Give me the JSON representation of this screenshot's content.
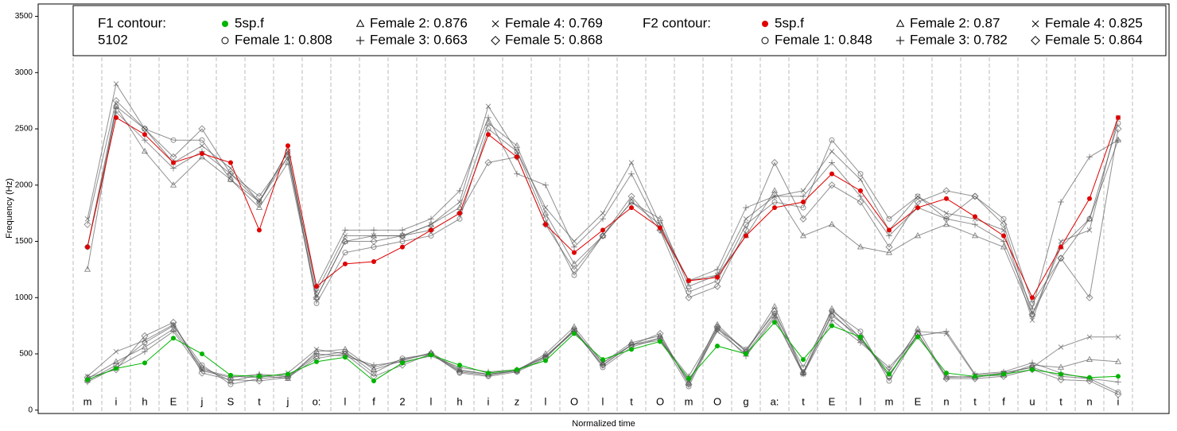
{
  "chart_data": {
    "type": "line",
    "xlabel": "Normalized time",
    "ylabel": "Frequency (Hz)",
    "ylim": [
      -30,
      3610
    ],
    "yticks": [
      0,
      500,
      1000,
      1500,
      2000,
      2500,
      3000,
      3500
    ],
    "xgrid": true,
    "categories": [
      "m",
      "i",
      "h",
      "E",
      "j",
      "S",
      "t",
      "j",
      "o:",
      "l",
      "f",
      "2",
      "l",
      "h",
      "i",
      "z",
      "l",
      "O",
      "l",
      "t",
      "O",
      "m",
      "O",
      "g",
      "a:",
      "t",
      "E",
      "l",
      "m",
      "E",
      "n",
      "t",
      "f",
      "u",
      "t",
      "n",
      "i"
    ],
    "legend_groups": [
      {
        "title": "F1 contour:",
        "subtitle": "5102",
        "series": [
          {
            "name": "5sp.f",
            "color": "#00b400",
            "marker": "dot",
            "values": [
              270,
              370,
              420,
              640,
              500,
              310,
              300,
              320,
              430,
              470,
              260,
              420,
              490,
              400,
              330,
              360,
              440,
              680,
              450,
              540,
              610,
              280,
              570,
              500,
              780,
              450,
              750,
              650,
              320,
              650,
              330,
              300,
              320,
              360,
              320,
              290,
              300
            ]
          },
          {
            "name": "Female 1: 0.808",
            "color": "#555555",
            "marker": "circle",
            "values": [
              260,
              400,
              600,
              750,
              400,
              230,
              280,
              300,
              480,
              520,
              330,
              460,
              500,
              330,
              300,
              340,
              460,
              720,
              380,
              560,
              640,
              210,
              720,
              540,
              860,
              380,
              880,
              700,
              260,
              680,
              300,
              290,
              330,
              380,
              300,
              280,
              160
            ]
          },
          {
            "name": "Female 2: 0.876",
            "color": "#555555",
            "marker": "triangle",
            "values": [
              280,
              430,
              560,
              720,
              380,
              260,
              310,
              280,
              520,
              540,
              360,
              440,
              510,
              360,
              320,
              350,
              500,
              740,
              420,
              600,
              660,
              240,
              760,
              520,
              920,
              330,
              900,
              640,
              300,
              720,
              290,
              300,
              310,
              400,
              380,
              450,
              430
            ]
          },
          {
            "name": "Female 3: 0.663",
            "color": "#555555",
            "marker": "plus",
            "values": [
              250,
              380,
              520,
              700,
              350,
              290,
              320,
              300,
              500,
              480,
              400,
              430,
              480,
              380,
              340,
              360,
              480,
              700,
              400,
              580,
              620,
              300,
              730,
              480,
              820,
              320,
              800,
              600,
              380,
              660,
              700,
              320,
              340,
              420,
              330,
              280,
              250
            ]
          },
          {
            "name": "Female 4: 0.769",
            "color": "#555555",
            "marker": "x",
            "values": [
              300,
              520,
              620,
              760,
              360,
              300,
              290,
              330,
              540,
              500,
              380,
              450,
              500,
              350,
              320,
              350,
              480,
              710,
              420,
              580,
              640,
              260,
              700,
              500,
              840,
              320,
              860,
              620,
              350,
              700,
              680,
              310,
              330,
              380,
              560,
              650,
              650
            ]
          },
          {
            "name": "Female 5: 0.868",
            "color": "#555555",
            "marker": "diamond",
            "values": [
              290,
              360,
              660,
              780,
              330,
              270,
              260,
              290,
              460,
              500,
              300,
              400,
              500,
              340,
              310,
              350,
              470,
              700,
              400,
              580,
              680,
              230,
              740,
              520,
              880,
              330,
              840,
              650,
              300,
              680,
              280,
              280,
              300,
              360,
              270,
              260,
              140
            ]
          }
        ]
      },
      {
        "title": "F2 contour:",
        "series": [
          {
            "name": "5sp.f",
            "color": "#e00000",
            "marker": "dot",
            "values": [
              1450,
              2600,
              2450,
              2200,
              2280,
              2200,
              1600,
              2350,
              1100,
              1300,
              1320,
              1450,
              1600,
              1750,
              2450,
              2250,
              1650,
              1400,
              1600,
              1800,
              1620,
              1150,
              1180,
              1550,
              1800,
              1850,
              2100,
              1950,
              1600,
              1800,
              1880,
              1720,
              1550,
              1000,
              1450,
              1880,
              2600
            ]
          },
          {
            "name": "Female 1: 0.848",
            "color": "#555555",
            "marker": "circle",
            "values": [
              1450,
              2700,
              2500,
              2400,
              2400,
              2050,
              1850,
              2300,
              950,
              1400,
              1450,
              1500,
              1550,
              1700,
              2500,
              2300,
              1700,
              1200,
              1550,
              1850,
              1650,
              1050,
              1150,
              1650,
              1850,
              1800,
              2400,
              2100,
              1700,
              1900,
              1700,
              1900,
              1700,
              950,
              1350,
              1700,
              2550
            ]
          },
          {
            "name": "Female 2: 0.87",
            "color": "#555555",
            "marker": "triangle",
            "values": [
              1250,
              2700,
              2300,
              2000,
              2250,
              2050,
              1800,
              2200,
              1000,
              1500,
              1550,
              1550,
              1650,
              1800,
              2550,
              2350,
              1750,
              1300,
              1550,
              1850,
              1700,
              1100,
              1200,
              1550,
              1950,
              1550,
              1650,
              1450,
              1400,
              1550,
              1650,
              1550,
              1450,
              850,
              1450,
              1700,
              2400
            ]
          },
          {
            "name": "Female 3: 0.782",
            "color": "#555555",
            "marker": "plus",
            "values": [
              1450,
              2650,
              2400,
              2150,
              2300,
              2100,
              1850,
              2250,
              1100,
              1600,
              1600,
              1600,
              1700,
              1950,
              2600,
              2100,
              2000,
              1450,
              1700,
              2100,
              1600,
              1150,
              1250,
              1800,
              1900,
              1900,
              2200,
              1900,
              1550,
              1800,
              1700,
              1650,
              1500,
              900,
              1850,
              2250,
              2400
            ]
          },
          {
            "name": "Female 4: 0.825",
            "color": "#555555",
            "marker": "x",
            "values": [
              1700,
              2900,
              2500,
              2200,
              2350,
              2150,
              1850,
              2300,
              1050,
              1550,
              1550,
              1550,
              1650,
              1850,
              2700,
              2300,
              1800,
              1500,
              1750,
              2200,
              1650,
              1150,
              1200,
              1700,
              1900,
              1950,
              2300,
              2050,
              1600,
              1900,
              1750,
              1700,
              1600,
              800,
              1500,
              1600,
              2600
            ]
          },
          {
            "name": "Female 5: 0.864",
            "color": "#555555",
            "marker": "diamond",
            "values": [
              1650,
              2750,
              2500,
              2250,
              2500,
              2100,
              1900,
              2250,
              1000,
              1500,
              1500,
              1550,
              1600,
              1750,
              2200,
              2250,
              1650,
              1250,
              1550,
              1900,
              1600,
              1000,
              1100,
              1600,
              2200,
              1700,
              2000,
              1850,
              1450,
              1850,
              1950,
              1900,
              1650,
              850,
              1350,
              1000,
              2500
            ]
          }
        ]
      }
    ]
  }
}
